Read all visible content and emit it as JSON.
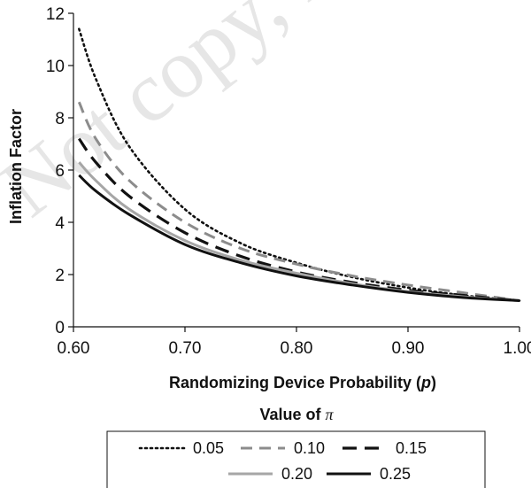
{
  "chart_data": {
    "type": "line",
    "title": "",
    "xlabel": "Randomizing Device Probability (",
    "xlabel_var": "p",
    "xlabel_close": ")",
    "ylabel": "Inflation Factor",
    "xlim": [
      0.6,
      1.0
    ],
    "ylim": [
      0,
      12
    ],
    "xticks": [
      0.6,
      0.7,
      0.8,
      0.9,
      1.0
    ],
    "xtick_labels": [
      "0.60",
      "0.70",
      "0.80",
      "0.90",
      "1.00"
    ],
    "yticks": [
      0,
      2,
      4,
      6,
      8,
      10,
      12
    ],
    "ytick_labels": [
      "0",
      "2",
      "4",
      "6",
      "8",
      "10",
      "12"
    ],
    "grid": false,
    "legend_title_prefix": "Value of ",
    "legend_title_symbol": "π",
    "legend_position": "bottom",
    "series": [
      {
        "name": "0.05",
        "style": "dotted",
        "color": "#111111",
        "x": [
          0.605,
          0.62,
          0.65,
          0.7,
          0.75,
          0.8,
          0.85,
          0.9,
          0.95,
          1.0
        ],
        "y": [
          11.4,
          9.5,
          6.9,
          4.5,
          3.2,
          2.45,
          1.9,
          1.5,
          1.2,
          1.0
        ]
      },
      {
        "name": "0.10",
        "style": "dashed",
        "color": "#8c8c8c",
        "x": [
          0.605,
          0.62,
          0.65,
          0.7,
          0.75,
          0.8,
          0.85,
          0.9,
          0.95,
          1.0
        ],
        "y": [
          8.6,
          7.2,
          5.6,
          4.0,
          3.0,
          2.4,
          1.95,
          1.6,
          1.3,
          1.0
        ]
      },
      {
        "name": "0.15",
        "style": "long-dashed",
        "color": "#111111",
        "x": [
          0.605,
          0.62,
          0.65,
          0.7,
          0.75,
          0.8,
          0.85,
          0.9,
          0.95,
          1.0
        ],
        "y": [
          7.2,
          6.3,
          5.0,
          3.6,
          2.7,
          2.1,
          1.7,
          1.4,
          1.2,
          1.0
        ]
      },
      {
        "name": "0.20",
        "style": "solid",
        "color": "#a6a6a6",
        "x": [
          0.605,
          0.62,
          0.65,
          0.7,
          0.75,
          0.8,
          0.85,
          0.9,
          0.95,
          1.0
        ],
        "y": [
          6.3,
          5.6,
          4.5,
          3.3,
          2.55,
          2.05,
          1.65,
          1.35,
          1.15,
          1.0
        ]
      },
      {
        "name": "0.25",
        "style": "solid",
        "color": "#111111",
        "x": [
          0.605,
          0.62,
          0.65,
          0.7,
          0.75,
          0.8,
          0.85,
          0.9,
          0.95,
          1.0
        ],
        "y": [
          5.8,
          5.2,
          4.3,
          3.15,
          2.45,
          1.95,
          1.6,
          1.32,
          1.12,
          1.0
        ]
      }
    ]
  },
  "watermark": "Not copy, not"
}
